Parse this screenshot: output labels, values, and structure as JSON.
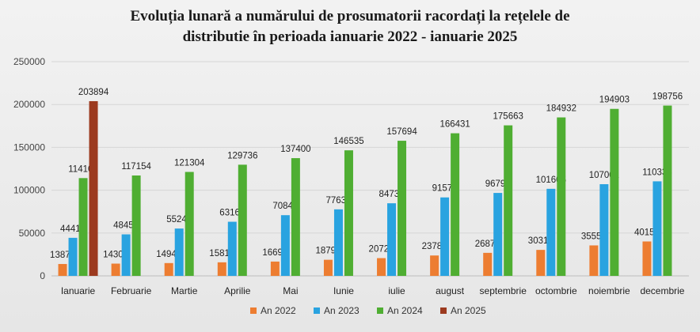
{
  "chart_data": {
    "type": "bar",
    "title_line1": "Evoluția lunară a numărului de prosumatorii racordați la rețelele de",
    "title_line2": "distributie în perioada ianuarie 2022 - ianuarie 2025",
    "categories": [
      "Ianuarie",
      "Februarie",
      "Martie",
      "Aprilie",
      "Mai",
      "Iunie",
      "iulie",
      "august",
      "septembrie",
      "octombrie",
      "noiembrie",
      "decembrie"
    ],
    "ylim": [
      0,
      250000
    ],
    "yticks": [
      "0",
      "50000",
      "100000",
      "150000",
      "200000",
      "250000"
    ],
    "grid": true,
    "legend_position": "bottom",
    "series": [
      {
        "name": "An 2022",
        "color": "#ed7d31",
        "values": [
          13874,
          14305,
          14948,
          15819,
          16696,
          18792,
          20720,
          23785,
          26877,
          30318,
          35552,
          40159
        ]
      },
      {
        "name": "An 2023",
        "color": "#29a3e0",
        "values": [
          44415,
          48453,
          55244,
          63162,
          70840,
          77638,
          84733,
          91572,
          96792,
          101605,
          107001,
          110335
        ]
      },
      {
        "name": "An 2024",
        "color": "#4fae32",
        "values": [
          114109,
          117154,
          121304,
          129736,
          137400,
          146535,
          157694,
          166431,
          175663,
          184932,
          194903,
          198756
        ]
      },
      {
        "name": "An 2025",
        "color": "#9c3a1f",
        "values": [
          203894,
          null,
          null,
          null,
          null,
          null,
          null,
          null,
          null,
          null,
          null,
          null
        ]
      }
    ]
  }
}
